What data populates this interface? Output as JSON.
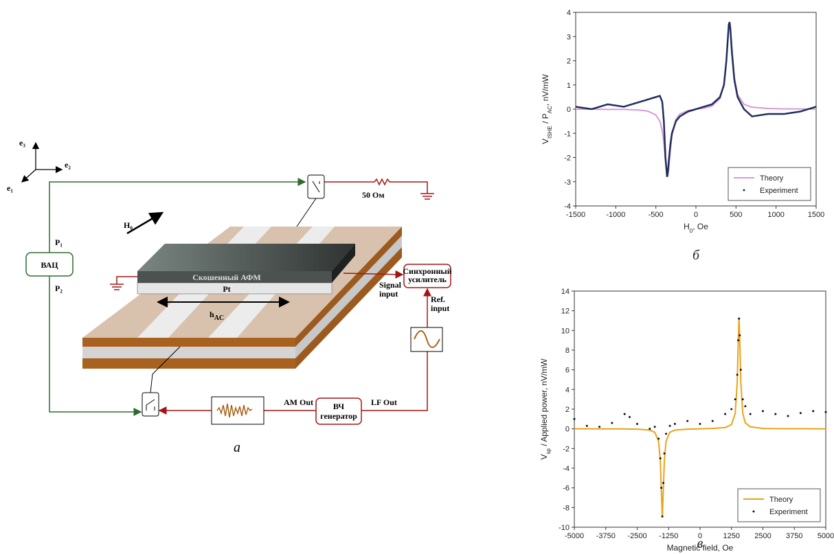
{
  "diagram": {
    "axes": {
      "e3": "e₃",
      "e2": "e₂",
      "e1": "e₁"
    },
    "field": "H₀",
    "ports": [
      "P₁",
      "P₂"
    ],
    "iv_meter": "ВАЦ",
    "resistor": "50 Ом",
    "afm_layer": "Скошенный АФМ",
    "pt_layer": "Pt",
    "ac_field": [
      "h",
      "AC"
    ],
    "lockin": [
      "Синхронный",
      "усилитель"
    ],
    "signal_input": [
      "Signal",
      "input"
    ],
    "ref_input": [
      "Ref.",
      "input"
    ],
    "am_out": "AM Out",
    "lf_out": "LF Out",
    "generator": [
      "ВЧ",
      "генератор"
    ],
    "caption": "а"
  },
  "chart_data": [
    {
      "type": "line",
      "caption": "б",
      "x_label": [
        "H",
        "0",
        ", Oe"
      ],
      "y_label": [
        "V",
        "ISHE",
        " / P",
        "AC",
        ", nV/mW"
      ],
      "x": [
        -1500,
        -1300,
        -1100,
        -900,
        -700,
        -600,
        -500,
        -450,
        -420,
        -400,
        -380,
        -360,
        -350,
        -340,
        -320,
        -300,
        -250,
        -200,
        -100,
        0,
        100,
        200,
        300,
        350,
        380,
        400,
        410,
        420,
        430,
        450,
        480,
        520,
        600,
        700,
        900,
        1100,
        1300,
        1500
      ],
      "series": [
        {
          "name": "Theory",
          "color": "#d69ad8",
          "style": "line",
          "values": [
            0,
            0,
            -0.01,
            -0.01,
            -0.04,
            -0.08,
            -0.24,
            -0.5,
            -0.9,
            -1.39,
            -2.13,
            -2.76,
            -2.76,
            -2.51,
            -1.73,
            -1.11,
            -0.42,
            -0.2,
            -0.06,
            0,
            0.04,
            0.13,
            0.43,
            1.04,
            2,
            2.99,
            3.42,
            3.59,
            3.42,
            2.48,
            1.29,
            0.6,
            0.2,
            0.08,
            0.03,
            0.01,
            0.01,
            0
          ]
        },
        {
          "name": "Experiment",
          "color": "#1f2d5c",
          "style": "thick-dots",
          "values": [
            0.1,
            0,
            0.2,
            0.1,
            0.3,
            0.4,
            0.5,
            0.55,
            0.3,
            -0.5,
            -2,
            -2.8,
            -2.6,
            -2.2,
            -1.5,
            -1,
            -0.5,
            -0.3,
            -0.1,
            0,
            0.1,
            0.2,
            0.5,
            1,
            2,
            3,
            3.5,
            3.6,
            3.3,
            2.3,
            1.2,
            0.5,
            0,
            -0.3,
            -0.2,
            -0.2,
            -0.1,
            0.1
          ]
        }
      ],
      "xlim": [
        -1500,
        1500
      ],
      "xticks": [
        -1500,
        -1000,
        -500,
        0,
        500,
        1000,
        1500
      ],
      "ylim": [
        -4,
        4
      ],
      "yticks": [
        -4,
        -3,
        -2,
        -1,
        0,
        1,
        2,
        3,
        4
      ],
      "legend": "lower right"
    },
    {
      "type": "line",
      "caption": "в",
      "x_label": [
        "Magnetic field, Oe"
      ],
      "y_label": [
        "V",
        "sp",
        " / Applied power, nV/mW"
      ],
      "x": [
        -5000,
        -4500,
        -4000,
        -3500,
        -3000,
        -2800,
        -2500,
        -2000,
        -1800,
        -1650,
        -1580,
        -1540,
        -1500,
        -1460,
        -1420,
        -1350,
        -1200,
        -1000,
        -500,
        0,
        500,
        1000,
        1250,
        1400,
        1480,
        1520,
        1550,
        1580,
        1620,
        1700,
        1800,
        2000,
        2500,
        3000,
        3500,
        4000,
        4500,
        5000
      ],
      "series": [
        {
          "name": "Theory",
          "color": "#e8a317",
          "style": "line",
          "values": [
            0,
            0,
            -0.01,
            -0.01,
            -0.01,
            -0.02,
            -0.03,
            -0.13,
            -0.35,
            -1.24,
            -3.24,
            -6.23,
            -9,
            -6.23,
            -3.24,
            -1.24,
            -0.35,
            -0.13,
            -0.03,
            0,
            0.04,
            0.13,
            0.43,
            1.56,
            4.79,
            9.04,
            11.3,
            9.04,
            4.79,
            1.56,
            0.61,
            0.2,
            0.04,
            0.02,
            0.01,
            0.01,
            0,
            0
          ]
        },
        {
          "name": "Experiment",
          "color": "#111111",
          "style": "dots",
          "values": [
            1,
            0.3,
            0.2,
            0.6,
            1.5,
            1.2,
            0.5,
            0,
            0.2,
            -1,
            -3,
            -6,
            -8.9,
            -5.5,
            -2.5,
            -0.5,
            0.3,
            0.5,
            0.8,
            0.5,
            0.8,
            1.5,
            2,
            3,
            5.5,
            9,
            11.2,
            9.5,
            6,
            3,
            2.3,
            1.5,
            1.8,
            1.5,
            1.3,
            1.6,
            1.8,
            1.7
          ]
        }
      ],
      "xlim": [
        -5000,
        5000
      ],
      "xticks": [
        -5000,
        -3750,
        -2500,
        -1250,
        0,
        1250,
        2500,
        3750,
        5000
      ],
      "ylim": [
        -10,
        14
      ],
      "yticks": [
        -10,
        -8,
        -6,
        -4,
        -2,
        0,
        2,
        4,
        6,
        8,
        10,
        12,
        14
      ],
      "legend": "lower right"
    }
  ]
}
